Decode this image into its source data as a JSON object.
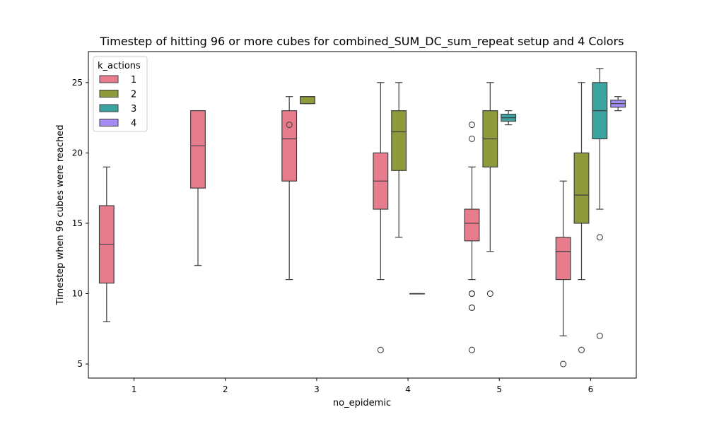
{
  "chart_data": {
    "type": "box",
    "title": "Timestep of hitting 96 or more cubes for combined_SUM_DC_sum_repeat setup and 4 Colors",
    "xlabel": "no_epidemic",
    "ylabel": "Timestep when 96 cubes were reached",
    "categories": [
      "1",
      "2",
      "3",
      "4",
      "5",
      "6"
    ],
    "ylim": [
      4,
      27.2
    ],
    "yticks": [
      5,
      10,
      15,
      20,
      25
    ],
    "legend": {
      "title": "k_actions",
      "placement": "top-left"
    },
    "series": [
      {
        "name": "1",
        "color": "#e77c8d",
        "boxes": [
          {
            "category": "1",
            "whisker_low": 8,
            "q1": 10.75,
            "median": 13.5,
            "q3": 16.25,
            "whisker_high": 19,
            "outliers": []
          },
          {
            "category": "2",
            "whisker_low": 12,
            "q1": 17.5,
            "median": 20.5,
            "q3": 23,
            "whisker_high": 23,
            "outliers": []
          },
          {
            "category": "3",
            "whisker_low": 11,
            "q1": 18,
            "median": 21,
            "q3": 23,
            "whisker_high": 24,
            "outliers": [
              22
            ]
          },
          {
            "category": "4",
            "whisker_low": 11,
            "q1": 16,
            "median": 18,
            "q3": 20,
            "whisker_high": 25,
            "outliers": [
              6
            ]
          },
          {
            "category": "5",
            "whisker_low": 11,
            "q1": 13.75,
            "median": 15,
            "q3": 16,
            "whisker_high": 19,
            "outliers": [
              22,
              21,
              10,
              10,
              9,
              9,
              6
            ]
          },
          {
            "category": "6",
            "whisker_low": 7,
            "q1": 11,
            "median": 13,
            "q3": 14,
            "whisker_high": 18,
            "outliers": [
              5
            ]
          }
        ]
      },
      {
        "name": "2",
        "color": "#8f9a3c",
        "boxes": [
          {
            "category": "3",
            "whisker_low": 23.5,
            "q1": 23.5,
            "median": 24,
            "q3": 24,
            "whisker_high": 24,
            "outliers": []
          },
          {
            "category": "4",
            "whisker_low": 14,
            "q1": 18.75,
            "median": 21.5,
            "q3": 23,
            "whisker_high": 25,
            "outliers": []
          },
          {
            "category": "5",
            "whisker_low": 13,
            "q1": 19,
            "median": 21,
            "q3": 23,
            "whisker_high": 25,
            "outliers": [
              10
            ]
          },
          {
            "category": "6",
            "whisker_low": 11,
            "q1": 15,
            "median": 17,
            "q3": 20,
            "whisker_high": 25,
            "outliers": [
              6
            ]
          }
        ]
      },
      {
        "name": "3",
        "color": "#3ba3a0",
        "boxes": [
          {
            "category": "4",
            "whisker_low": 10,
            "q1": 10,
            "median": 10,
            "q3": 10,
            "whisker_high": 10,
            "outliers": []
          },
          {
            "category": "5",
            "whisker_low": 22,
            "q1": 22.25,
            "median": 22.5,
            "q3": 22.75,
            "whisker_high": 23,
            "outliers": []
          },
          {
            "category": "6",
            "whisker_low": 16,
            "q1": 21,
            "median": 23,
            "q3": 25,
            "whisker_high": 26,
            "outliers": [
              14,
              7
            ]
          }
        ]
      },
      {
        "name": "4",
        "color": "#a48cf4",
        "boxes": [
          {
            "category": "6",
            "whisker_low": 23,
            "q1": 23.25,
            "median": 23.5,
            "q3": 23.75,
            "whisker_high": 24,
            "outliers": []
          }
        ]
      }
    ]
  }
}
